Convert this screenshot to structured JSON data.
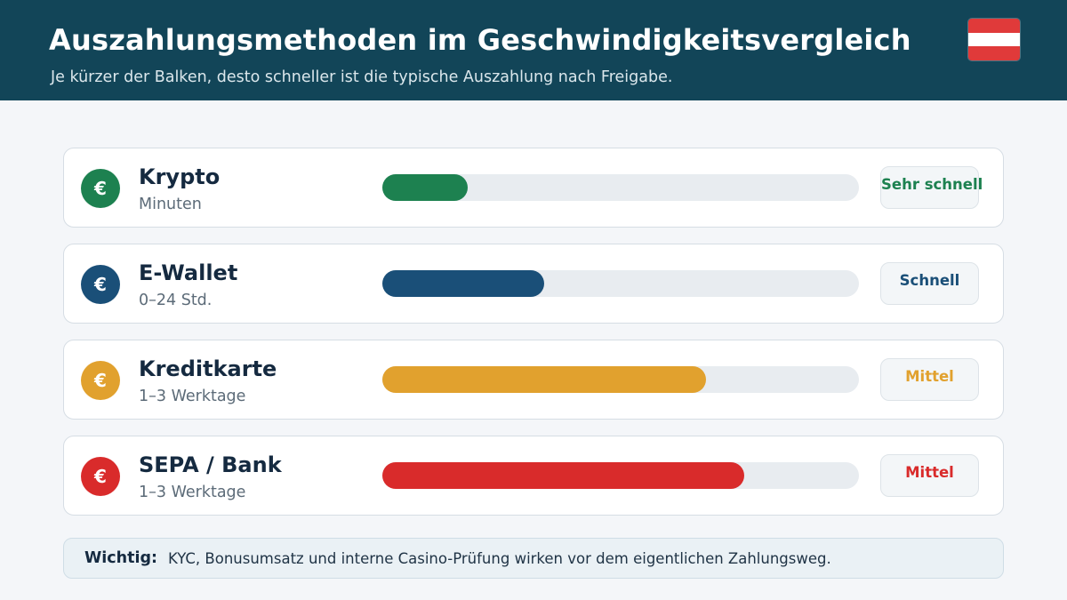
{
  "header": {
    "title": "Auszahlungsmethoden im Geschwindigkeitsvergleich",
    "subtitle": "Je kürzer der Balken, desto schneller ist die typische Auszahlung nach Freigabe.",
    "flag_colors": [
      "#e03a3a",
      "#ffffff",
      "#e03a3a"
    ]
  },
  "chart_data": {
    "type": "bar",
    "orientation": "horizontal",
    "title": "Auszahlungsmethoden im Geschwindigkeitsvergleich",
    "subtitle": "Je kürzer der Balken, desto schneller ist die typische Auszahlung nach Freigabe.",
    "xlim": [
      0,
      100
    ],
    "grid": false,
    "categories": [
      "Krypto",
      "E-Wallet",
      "Kreditkarte",
      "SEPA / Bank"
    ],
    "values": [
      18,
      34,
      68,
      76
    ],
    "items": [
      {
        "name": "Krypto",
        "time": "Minuten",
        "value": 18,
        "badge": "Sehr schnell",
        "color": "#1d8150",
        "icon": "euro-coin-icon",
        "coin_symbol": "€"
      },
      {
        "name": "E-Wallet",
        "time": "0–24 Std.",
        "value": 34,
        "badge": "Schnell",
        "color": "#1a4f78",
        "icon": "euro-coin-icon",
        "coin_symbol": "€"
      },
      {
        "name": "Kreditkarte",
        "time": "1–3 Werktage",
        "value": 68,
        "badge": "Mittel",
        "color": "#e1a12e",
        "icon": "euro-coin-icon",
        "coin_symbol": "€"
      },
      {
        "name": "SEPA / Bank",
        "time": "1–3 Werktage",
        "value": 76,
        "badge": "Mittel",
        "color": "#d92b2b",
        "icon": "euro-coin-icon",
        "coin_symbol": "€"
      }
    ]
  },
  "note": {
    "label": "Wichtig:",
    "text": "KYC, Bonusumsatz und interne Casino-Prüfung wirken vor dem eigentlichen Zahlungsweg."
  }
}
